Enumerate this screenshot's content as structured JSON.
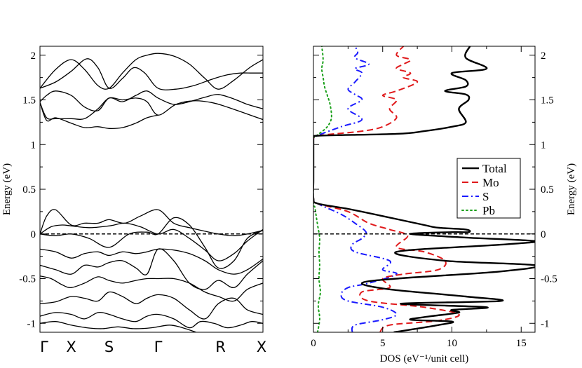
{
  "chart_data": [
    {
      "type": "line",
      "ylabel": "Energy (eV)",
      "ylim": [
        -1.1,
        2.1
      ],
      "yticks": [
        -1,
        -0.5,
        0,
        0.5,
        1,
        1.5,
        2
      ],
      "ytick_labels": [
        "-1",
        "-0.5",
        "0",
        "0.5",
        "1",
        "1.5",
        "2"
      ],
      "kpoints": [
        "Γ",
        "X",
        "S",
        "Γ",
        "R",
        "X"
      ],
      "kpoint_positions": [
        0,
        0.14,
        0.31,
        0.53,
        0.81,
        1.0
      ],
      "fermi_level": 0,
      "bands": [
        {
          "x": [
            0,
            0.07,
            0.14,
            0.2,
            0.26,
            0.31,
            0.37,
            0.43,
            0.48,
            0.53,
            0.6,
            0.67,
            0.74,
            0.8,
            0.87,
            0.94,
            1.0
          ],
          "y": [
            1.63,
            1.84,
            1.95,
            1.84,
            1.66,
            1.63,
            1.8,
            1.95,
            2.0,
            2.02,
            1.99,
            1.9,
            1.74,
            1.62,
            1.72,
            1.86,
            1.95
          ]
        },
        {
          "x": [
            0,
            0.07,
            0.14,
            0.21,
            0.26,
            0.31,
            0.37,
            0.42,
            0.47,
            0.53,
            0.61,
            0.69,
            0.77,
            0.84,
            0.9,
            0.95,
            1.0
          ],
          "y": [
            1.63,
            1.7,
            1.82,
            1.96,
            1.86,
            1.63,
            1.74,
            1.86,
            1.8,
            1.63,
            1.62,
            1.66,
            1.73,
            1.78,
            1.8,
            1.8,
            1.8
          ]
        },
        {
          "x": [
            0,
            0.03,
            0.07,
            0.14,
            0.2,
            0.26,
            0.31,
            0.37,
            0.43,
            0.48,
            0.53,
            0.6,
            0.67,
            0.74,
            0.8,
            0.87,
            0.93,
            1.0
          ],
          "y": [
            1.48,
            1.55,
            1.6,
            1.55,
            1.42,
            1.38,
            1.52,
            1.48,
            1.55,
            1.6,
            1.52,
            1.45,
            1.48,
            1.53,
            1.56,
            1.51,
            1.45,
            1.4
          ]
        },
        {
          "x": [
            0,
            0.03,
            0.07,
            0.14,
            0.2,
            0.26,
            0.31,
            0.37,
            0.43,
            0.48,
            0.53,
            0.61,
            0.69,
            0.77,
            0.84,
            0.92,
            1.0
          ],
          "y": [
            1.47,
            1.3,
            1.29,
            1.29,
            1.29,
            1.4,
            1.52,
            1.5,
            1.52,
            1.48,
            1.33,
            1.45,
            1.49,
            1.47,
            1.42,
            1.35,
            1.28
          ]
        },
        {
          "x": [
            0,
            0.03,
            0.07,
            0.14,
            0.2,
            0.26,
            0.31,
            0.37,
            0.43,
            0.48,
            0.53
          ],
          "y": [
            1.47,
            1.27,
            1.3,
            1.24,
            1.19,
            1.2,
            1.18,
            1.19,
            1.24,
            1.3,
            1.33
          ]
        },
        {
          "x": [
            0,
            0.03,
            0.07,
            0.14,
            0.2,
            0.26,
            0.31,
            0.38,
            0.45,
            0.53,
            0.6,
            0.67,
            0.74,
            0.8,
            0.87,
            0.93,
            1.0
          ],
          "y": [
            0.0,
            0.2,
            0.27,
            0.1,
            0.12,
            0.12,
            0.16,
            0.12,
            0.2,
            0.27,
            0.12,
            0.07,
            0.03,
            0.0,
            -0.02,
            0.0,
            0.04
          ]
        },
        {
          "x": [
            0,
            0.05,
            0.1,
            0.14,
            0.22,
            0.31,
            0.38,
            0.45,
            0.53,
            0.6,
            0.67,
            0.74,
            0.8,
            0.87,
            0.93,
            1.0
          ],
          "y": [
            0.0,
            0.08,
            0.1,
            0.09,
            0.07,
            0.09,
            0.12,
            0.08,
            0.0,
            0.05,
            -0.05,
            -0.18,
            -0.3,
            -0.22,
            -0.08,
            0.05
          ]
        },
        {
          "x": [
            0,
            0.07,
            0.14,
            0.22,
            0.31,
            0.4,
            0.48,
            0.53,
            0.6,
            0.67,
            0.74,
            0.8,
            0.87,
            0.93,
            1.0
          ],
          "y": [
            0.0,
            -0.02,
            0.0,
            -0.05,
            -0.15,
            0.0,
            0.02,
            0.0,
            0.18,
            0.1,
            -0.15,
            -0.38,
            -0.3,
            -0.05,
            0.04
          ]
        },
        {
          "x": [
            0,
            0.07,
            0.14,
            0.2,
            0.26,
            0.31,
            0.37,
            0.43,
            0.48,
            0.53,
            0.6,
            0.67,
            0.74,
            0.8,
            0.87,
            0.93,
            1.0
          ],
          "y": [
            -0.17,
            -0.2,
            -0.27,
            -0.22,
            -0.2,
            -0.24,
            -0.2,
            -0.22,
            -0.2,
            -0.17,
            -0.18,
            -0.22,
            -0.3,
            -0.4,
            -0.45,
            -0.4,
            -0.28
          ]
        },
        {
          "x": [
            0,
            0.07,
            0.14,
            0.2,
            0.26,
            0.31,
            0.37,
            0.43,
            0.48,
            0.53,
            0.6,
            0.67,
            0.74,
            0.8,
            0.87,
            0.93,
            1.0
          ],
          "y": [
            -0.35,
            -0.4,
            -0.45,
            -0.35,
            -0.37,
            -0.32,
            -0.3,
            -0.38,
            -0.45,
            -0.17,
            -0.3,
            -0.55,
            -0.62,
            -0.52,
            -0.6,
            -0.45,
            -0.3
          ]
        },
        {
          "x": [
            0,
            0.05,
            0.1,
            0.14,
            0.2,
            0.26,
            0.31,
            0.37,
            0.43,
            0.48,
            0.53,
            0.6,
            0.67,
            0.74,
            0.8,
            0.87,
            0.93,
            1.0
          ],
          "y": [
            -0.47,
            -0.5,
            -0.57,
            -0.6,
            -0.55,
            -0.48,
            -0.52,
            -0.55,
            -0.52,
            -0.5,
            -0.5,
            -0.5,
            -0.55,
            -0.65,
            -0.7,
            -0.75,
            -0.62,
            -0.55
          ]
        },
        {
          "x": [
            0,
            0.07,
            0.14,
            0.2,
            0.26,
            0.31,
            0.37,
            0.43,
            0.48,
            0.53,
            0.6,
            0.67,
            0.74,
            0.8,
            0.87,
            0.93,
            1.0
          ],
          "y": [
            -0.78,
            -0.76,
            -0.7,
            -0.72,
            -0.75,
            -0.65,
            -0.7,
            -0.78,
            -0.72,
            -0.68,
            -0.72,
            -0.85,
            -0.95,
            -0.78,
            -0.72,
            -0.85,
            -0.9
          ]
        },
        {
          "x": [
            0,
            0.07,
            0.14,
            0.2,
            0.26,
            0.31,
            0.37,
            0.43,
            0.48,
            0.53,
            0.6,
            0.67,
            0.72,
            0.78,
            0.84,
            0.9,
            0.95,
            1.0
          ],
          "y": [
            -0.92,
            -0.88,
            -0.9,
            -0.95,
            -0.88,
            -0.9,
            -0.95,
            -0.98,
            -0.92,
            -0.9,
            -0.95,
            -1.05,
            -0.98,
            -1.0,
            -1.05,
            -1.02,
            -0.98,
            -1.0
          ]
        },
        {
          "x": [
            0,
            0.07,
            0.14,
            0.21,
            0.28,
            0.35,
            0.42,
            0.5,
            0.58,
            0.64,
            0.7
          ],
          "y": [
            -1.0,
            -0.98,
            -1.02,
            -1.05,
            -1.06,
            -1.04,
            -1.06,
            -1.05,
            -1.02,
            -1.05,
            -1.1
          ]
        }
      ]
    },
    {
      "type": "line",
      "xlabel": "DOS (eV⁻¹/unit cell)",
      "ylabel": "Energy (eV)",
      "xlim": [
        0,
        16
      ],
      "ylim": [
        -1.1,
        2.1
      ],
      "xticks": [
        0,
        5,
        10,
        15
      ],
      "xtick_labels": [
        "0",
        "5",
        "10",
        "15"
      ],
      "yticks": [
        -1,
        -0.5,
        0,
        0.5,
        1,
        1.5,
        2
      ],
      "ytick_labels": [
        "-1",
        "-0.5",
        "0",
        "0.5",
        "1",
        "1.5",
        "2"
      ],
      "fermi_level": 0,
      "legend_position": "right-middle",
      "series": [
        {
          "name": "Total",
          "color": "#000000",
          "dash": "solid",
          "x": [
            5.8,
            9.0,
            10.0,
            7.0,
            8.5,
            10.5,
            10.0,
            12.5,
            6.3,
            13.5,
            11.0,
            5.5,
            3.5,
            6.0,
            13.5,
            16.0,
            9.5,
            6.0,
            13.5,
            16.0,
            11.0,
            7.0,
            10.0,
            11.2,
            11.0,
            9.0,
            8.0,
            5.0,
            2.5,
            0.3,
            0.0,
            0.0,
            0.0,
            0.0,
            0.0,
            0.0,
            0.4,
            6.0,
            8.0,
            10.0,
            11.0,
            10.5,
            11.2,
            11.0,
            9.5,
            11.0,
            11.0,
            10.0,
            12.5,
            11.0,
            11.3
          ],
          "y": [
            -1.1,
            -1.02,
            -0.98,
            -0.96,
            -0.92,
            -0.88,
            -0.85,
            -0.82,
            -0.78,
            -0.75,
            -0.7,
            -0.62,
            -0.55,
            -0.5,
            -0.42,
            -0.35,
            -0.3,
            -0.2,
            -0.12,
            -0.08,
            -0.04,
            0.0,
            0.02,
            0.02,
            0.05,
            0.07,
            0.1,
            0.2,
            0.28,
            0.34,
            0.4,
            0.6,
            0.8,
            1.0,
            1.05,
            1.08,
            1.1,
            1.12,
            1.15,
            1.2,
            1.25,
            1.4,
            1.5,
            1.56,
            1.6,
            1.65,
            1.72,
            1.8,
            1.85,
            1.97,
            2.1
          ]
        },
        {
          "name": "Mo",
          "color": "#e0191b",
          "dash": "dashed",
          "x": [
            4.8,
            5.5,
            9.0,
            10.5,
            8.0,
            4.0,
            3.5,
            5.5,
            5.0,
            6.5,
            9.0,
            9.5,
            8.0,
            6.0,
            6.8,
            5.5,
            4.0,
            2.5,
            0.3,
            0.0,
            0.0,
            0.0,
            0.0,
            0.4,
            3.5,
            5.0,
            6.0,
            5.5,
            6.0,
            5.0,
            6.0,
            7.5,
            6.5,
            7.0,
            6.0,
            6.5,
            7.0,
            6.0,
            6.5
          ],
          "y": [
            -1.1,
            -1.02,
            -0.97,
            -0.9,
            -0.82,
            -0.75,
            -0.65,
            -0.6,
            -0.5,
            -0.45,
            -0.4,
            -0.3,
            -0.2,
            -0.15,
            -0.02,
            0.05,
            0.12,
            0.25,
            0.34,
            0.4,
            0.6,
            0.8,
            1.05,
            1.1,
            1.15,
            1.2,
            1.3,
            1.4,
            1.5,
            1.55,
            1.6,
            1.7,
            1.75,
            1.8,
            1.85,
            1.9,
            1.95,
            2.0,
            2.1
          ]
        },
        {
          "name": "S",
          "color": "#1a1aff",
          "dash": "dashdot",
          "x": [
            2.8,
            3.0,
            5.0,
            6.0,
            5.0,
            2.5,
            2.0,
            2.5,
            4.0,
            6.0,
            5.0,
            5.5,
            3.0,
            2.8,
            3.5,
            3.8,
            3.0,
            2.0,
            0.3,
            0.0,
            0.0,
            0.0,
            0.0,
            0.3,
            2.0,
            3.5,
            2.5,
            3.5,
            3.0,
            2.5,
            3.0,
            3.5,
            3.0,
            4.0,
            3.0,
            3.2,
            3.0
          ],
          "y": [
            -1.1,
            -1.02,
            -0.96,
            -0.9,
            -0.82,
            -0.75,
            -0.68,
            -0.6,
            -0.55,
            -0.45,
            -0.4,
            -0.3,
            -0.2,
            -0.12,
            -0.05,
            0.02,
            0.12,
            0.22,
            0.34,
            0.4,
            0.6,
            0.8,
            1.05,
            1.1,
            1.2,
            1.28,
            1.4,
            1.5,
            1.56,
            1.62,
            1.7,
            1.8,
            1.85,
            1.9,
            1.97,
            2.03,
            2.1
          ]
        },
        {
          "name": "Pb",
          "color": "#1aa01a",
          "dash": "dotted",
          "x": [
            0.3,
            0.45,
            0.35,
            0.5,
            0.4,
            0.45,
            0.4,
            0.45,
            0.3,
            0.2,
            0.1,
            0.0,
            0.0,
            0.0,
            0.05,
            0.4,
            1.0,
            1.3,
            1.2,
            1.0,
            0.8,
            0.7,
            0.6,
            0.7,
            0.6
          ],
          "y": [
            -1.1,
            -0.95,
            -0.8,
            -0.65,
            -0.5,
            -0.35,
            -0.2,
            -0.05,
            0.1,
            0.2,
            0.3,
            0.34,
            0.6,
            1.05,
            1.08,
            1.12,
            1.2,
            1.3,
            1.45,
            1.55,
            1.65,
            1.75,
            1.85,
            1.95,
            2.1
          ]
        }
      ]
    }
  ]
}
